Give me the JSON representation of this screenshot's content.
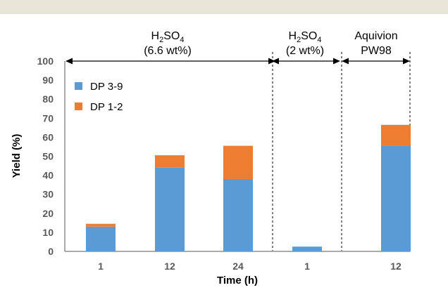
{
  "chart_data": {
    "type": "bar",
    "stacked": true,
    "categories": [
      "1",
      "12",
      "24",
      "1",
      "12"
    ],
    "series": [
      {
        "name": "DP 3-9",
        "color": "#5b9bd5",
        "values": [
          13,
          44,
          38,
          2.5,
          55.5
        ]
      },
      {
        "name": "DP 1-2",
        "color": "#ed7d31",
        "values": [
          1.5,
          6.5,
          17.5,
          0,
          11
        ]
      }
    ],
    "xlabel": "Time (h)",
    "ylabel": "Yield (%)",
    "ylim": [
      0,
      100
    ],
    "yticks": [
      "0",
      "10",
      "20",
      "30",
      "40",
      "50",
      "60",
      "70",
      "80",
      "90",
      "100"
    ],
    "legend_position": "top-left",
    "grid": false,
    "groups": [
      {
        "line1_main": "H",
        "line1_sub1": "2",
        "line1_mid": "SO",
        "line1_sub2": "4",
        "line2": "(6.6 wt%)"
      },
      {
        "line1_main": "H",
        "line1_sub1": "2",
        "line1_mid": "SO",
        "line1_sub2": "4",
        "line2": "(2 wt%)"
      },
      {
        "line1": "Aquivion",
        "line2": "PW98"
      }
    ]
  }
}
